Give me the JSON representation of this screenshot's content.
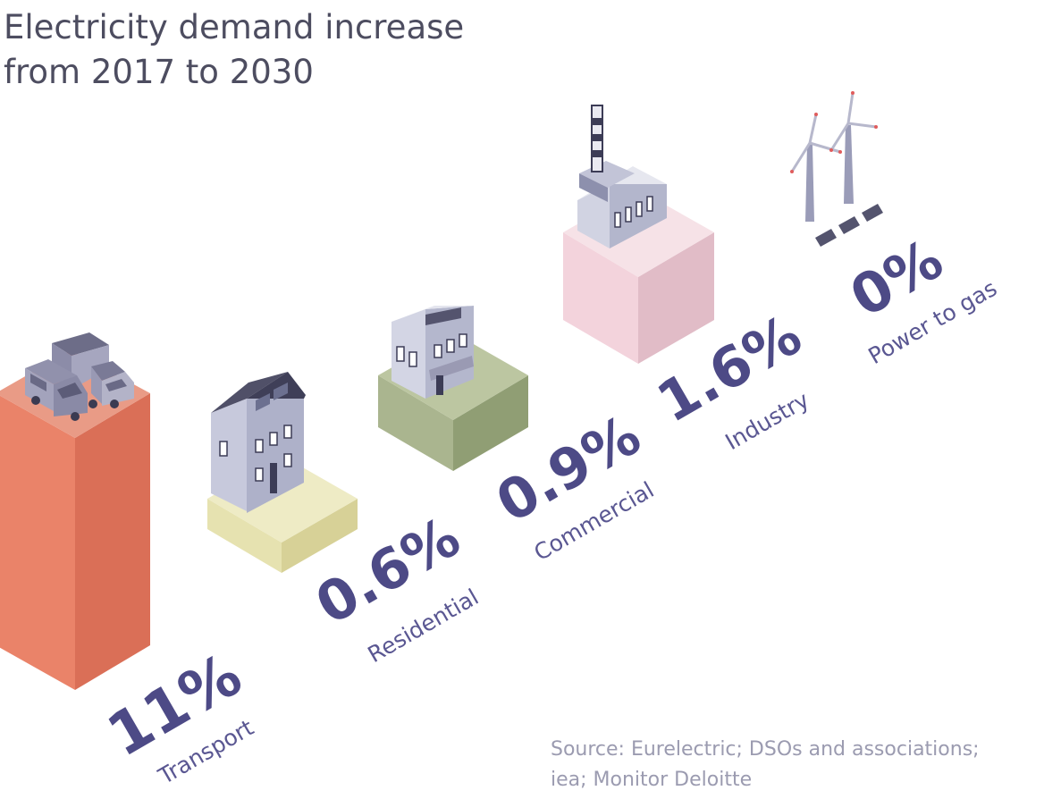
{
  "title": {
    "line1": "Electricity demand increase",
    "line2": "from 2017 to 2030"
  },
  "source": {
    "line1": "Source: Eurelectric; DSOs and associations;",
    "line2": "iea; Monitor Deloitte"
  },
  "chart_data": {
    "type": "bar",
    "title": "Electricity demand increase from 2017 to 2030",
    "unit": "%",
    "categories": [
      "Transport",
      "Residential",
      "Commercial",
      "Industry",
      "Power to gas"
    ],
    "values": [
      11,
      0.6,
      0.9,
      1.6,
      0
    ],
    "value_labels": [
      "11%",
      "0.6%",
      "0.9%",
      "1.6%",
      "0%"
    ],
    "illustrations": [
      "vehicles-icon",
      "house-icon",
      "shop-icon",
      "factory-icon",
      "wind-turbines-icon"
    ],
    "colors": {
      "Transport": [
        "#ea8369",
        "#da6f57",
        "#e99b86"
      ],
      "Residential": [
        "#e6e2b0",
        "#d7d197",
        "#eeebc5"
      ],
      "Commercial": [
        "#aab58f",
        "#909e74",
        "#bcc6a1"
      ],
      "Industry": [
        "#f3d3dc",
        "#e1bcc7",
        "#f6e2e7"
      ]
    }
  }
}
